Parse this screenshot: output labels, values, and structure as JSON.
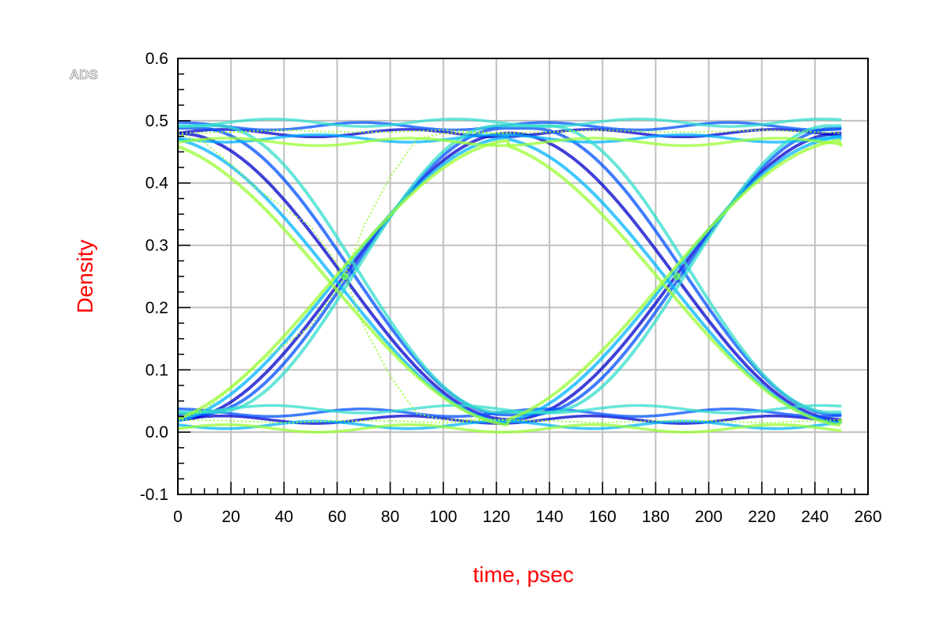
{
  "app_logo": "ADS",
  "chart_data": {
    "type": "eye_diagram",
    "title": "",
    "xlabel": "time, psec",
    "ylabel": "Density",
    "xlim": [
      0,
      260
    ],
    "ylim": [
      -0.1,
      0.6
    ],
    "x_ticks": [
      0,
      20,
      40,
      60,
      80,
      100,
      120,
      140,
      160,
      180,
      200,
      220,
      240,
      260
    ],
    "y_ticks": [
      -0.1,
      0.0,
      0.1,
      0.2,
      0.3,
      0.4,
      0.5,
      0.6
    ],
    "x_tick_labels": [
      "0",
      "20",
      "40",
      "60",
      "80",
      "100",
      "120",
      "140",
      "160",
      "180",
      "200",
      "220",
      "240",
      "260"
    ],
    "y_tick_labels": [
      "-0.1",
      "0.0",
      "0.1",
      "0.2",
      "0.3",
      "0.4",
      "0.5",
      "0.6"
    ],
    "grid": true,
    "data_x_range": [
      0,
      250
    ],
    "unit_interval_psec": 125,
    "eye_crossings": [
      {
        "x": 63,
        "y": 0.25
      },
      {
        "x": 188,
        "y": 0.25
      }
    ],
    "high_level": 0.48,
    "low_level": 0.02,
    "density_colors": [
      "#0000cc",
      "#0050ff",
      "#00b4ff",
      "#33ddcc",
      "#99ff33"
    ],
    "series": [
      {
        "name": "transition_a",
        "x": [
          0,
          10,
          20,
          30,
          40,
          50,
          60,
          63,
          70,
          80,
          90,
          100,
          110,
          120,
          125
        ],
        "y": [
          0.48,
          0.465,
          0.43,
          0.39,
          0.36,
          0.33,
          0.27,
          0.25,
          0.17,
          0.09,
          0.03,
          0.02,
          0.02,
          0.02,
          0.02
        ]
      },
      {
        "name": "transition_b",
        "x": [
          0,
          10,
          20,
          30,
          40,
          50,
          60,
          63,
          70,
          80,
          90,
          100,
          110,
          120,
          125
        ],
        "y": [
          0.02,
          0.035,
          0.07,
          0.11,
          0.14,
          0.17,
          0.23,
          0.25,
          0.33,
          0.41,
          0.47,
          0.48,
          0.48,
          0.48,
          0.48
        ]
      },
      {
        "name": "level_high",
        "x": [
          0,
          20,
          40,
          60,
          80,
          100,
          120,
          140,
          160,
          180,
          200,
          220,
          240,
          250
        ],
        "y": [
          0.48,
          0.482,
          0.485,
          0.482,
          0.482,
          0.485,
          0.48,
          0.482,
          0.485,
          0.482,
          0.482,
          0.485,
          0.482,
          0.48
        ]
      },
      {
        "name": "level_low",
        "x": [
          0,
          20,
          40,
          60,
          80,
          100,
          120,
          140,
          160,
          180,
          200,
          220,
          240,
          250
        ],
        "y": [
          0.02,
          0.018,
          0.015,
          0.018,
          0.018,
          0.015,
          0.02,
          0.018,
          0.015,
          0.018,
          0.018,
          0.015,
          0.018,
          0.02
        ]
      }
    ]
  }
}
